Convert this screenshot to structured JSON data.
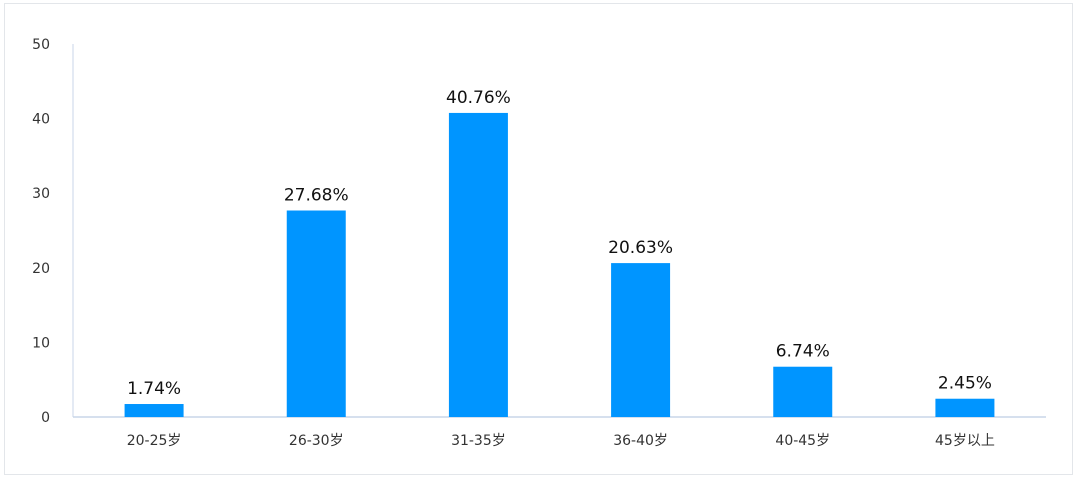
{
  "chart_data": {
    "type": "bar",
    "categories": [
      "20-25岁",
      "26-30岁",
      "31-35岁",
      "36-40岁",
      "40-45岁",
      "45岁以上"
    ],
    "values": [
      1.74,
      27.68,
      40.76,
      20.63,
      6.74,
      2.45
    ],
    "data_labels": [
      "1.74%",
      "27.68%",
      "40.76%",
      "20.63%",
      "6.74%",
      "2.45%"
    ],
    "y_ticks": [
      "0",
      "10",
      "20",
      "30",
      "40",
      "50"
    ],
    "ylim": [
      0,
      50
    ],
    "bar_color": "#0095ff",
    "axis_color": "#c9d6e8",
    "legend": "none",
    "grid": false
  }
}
